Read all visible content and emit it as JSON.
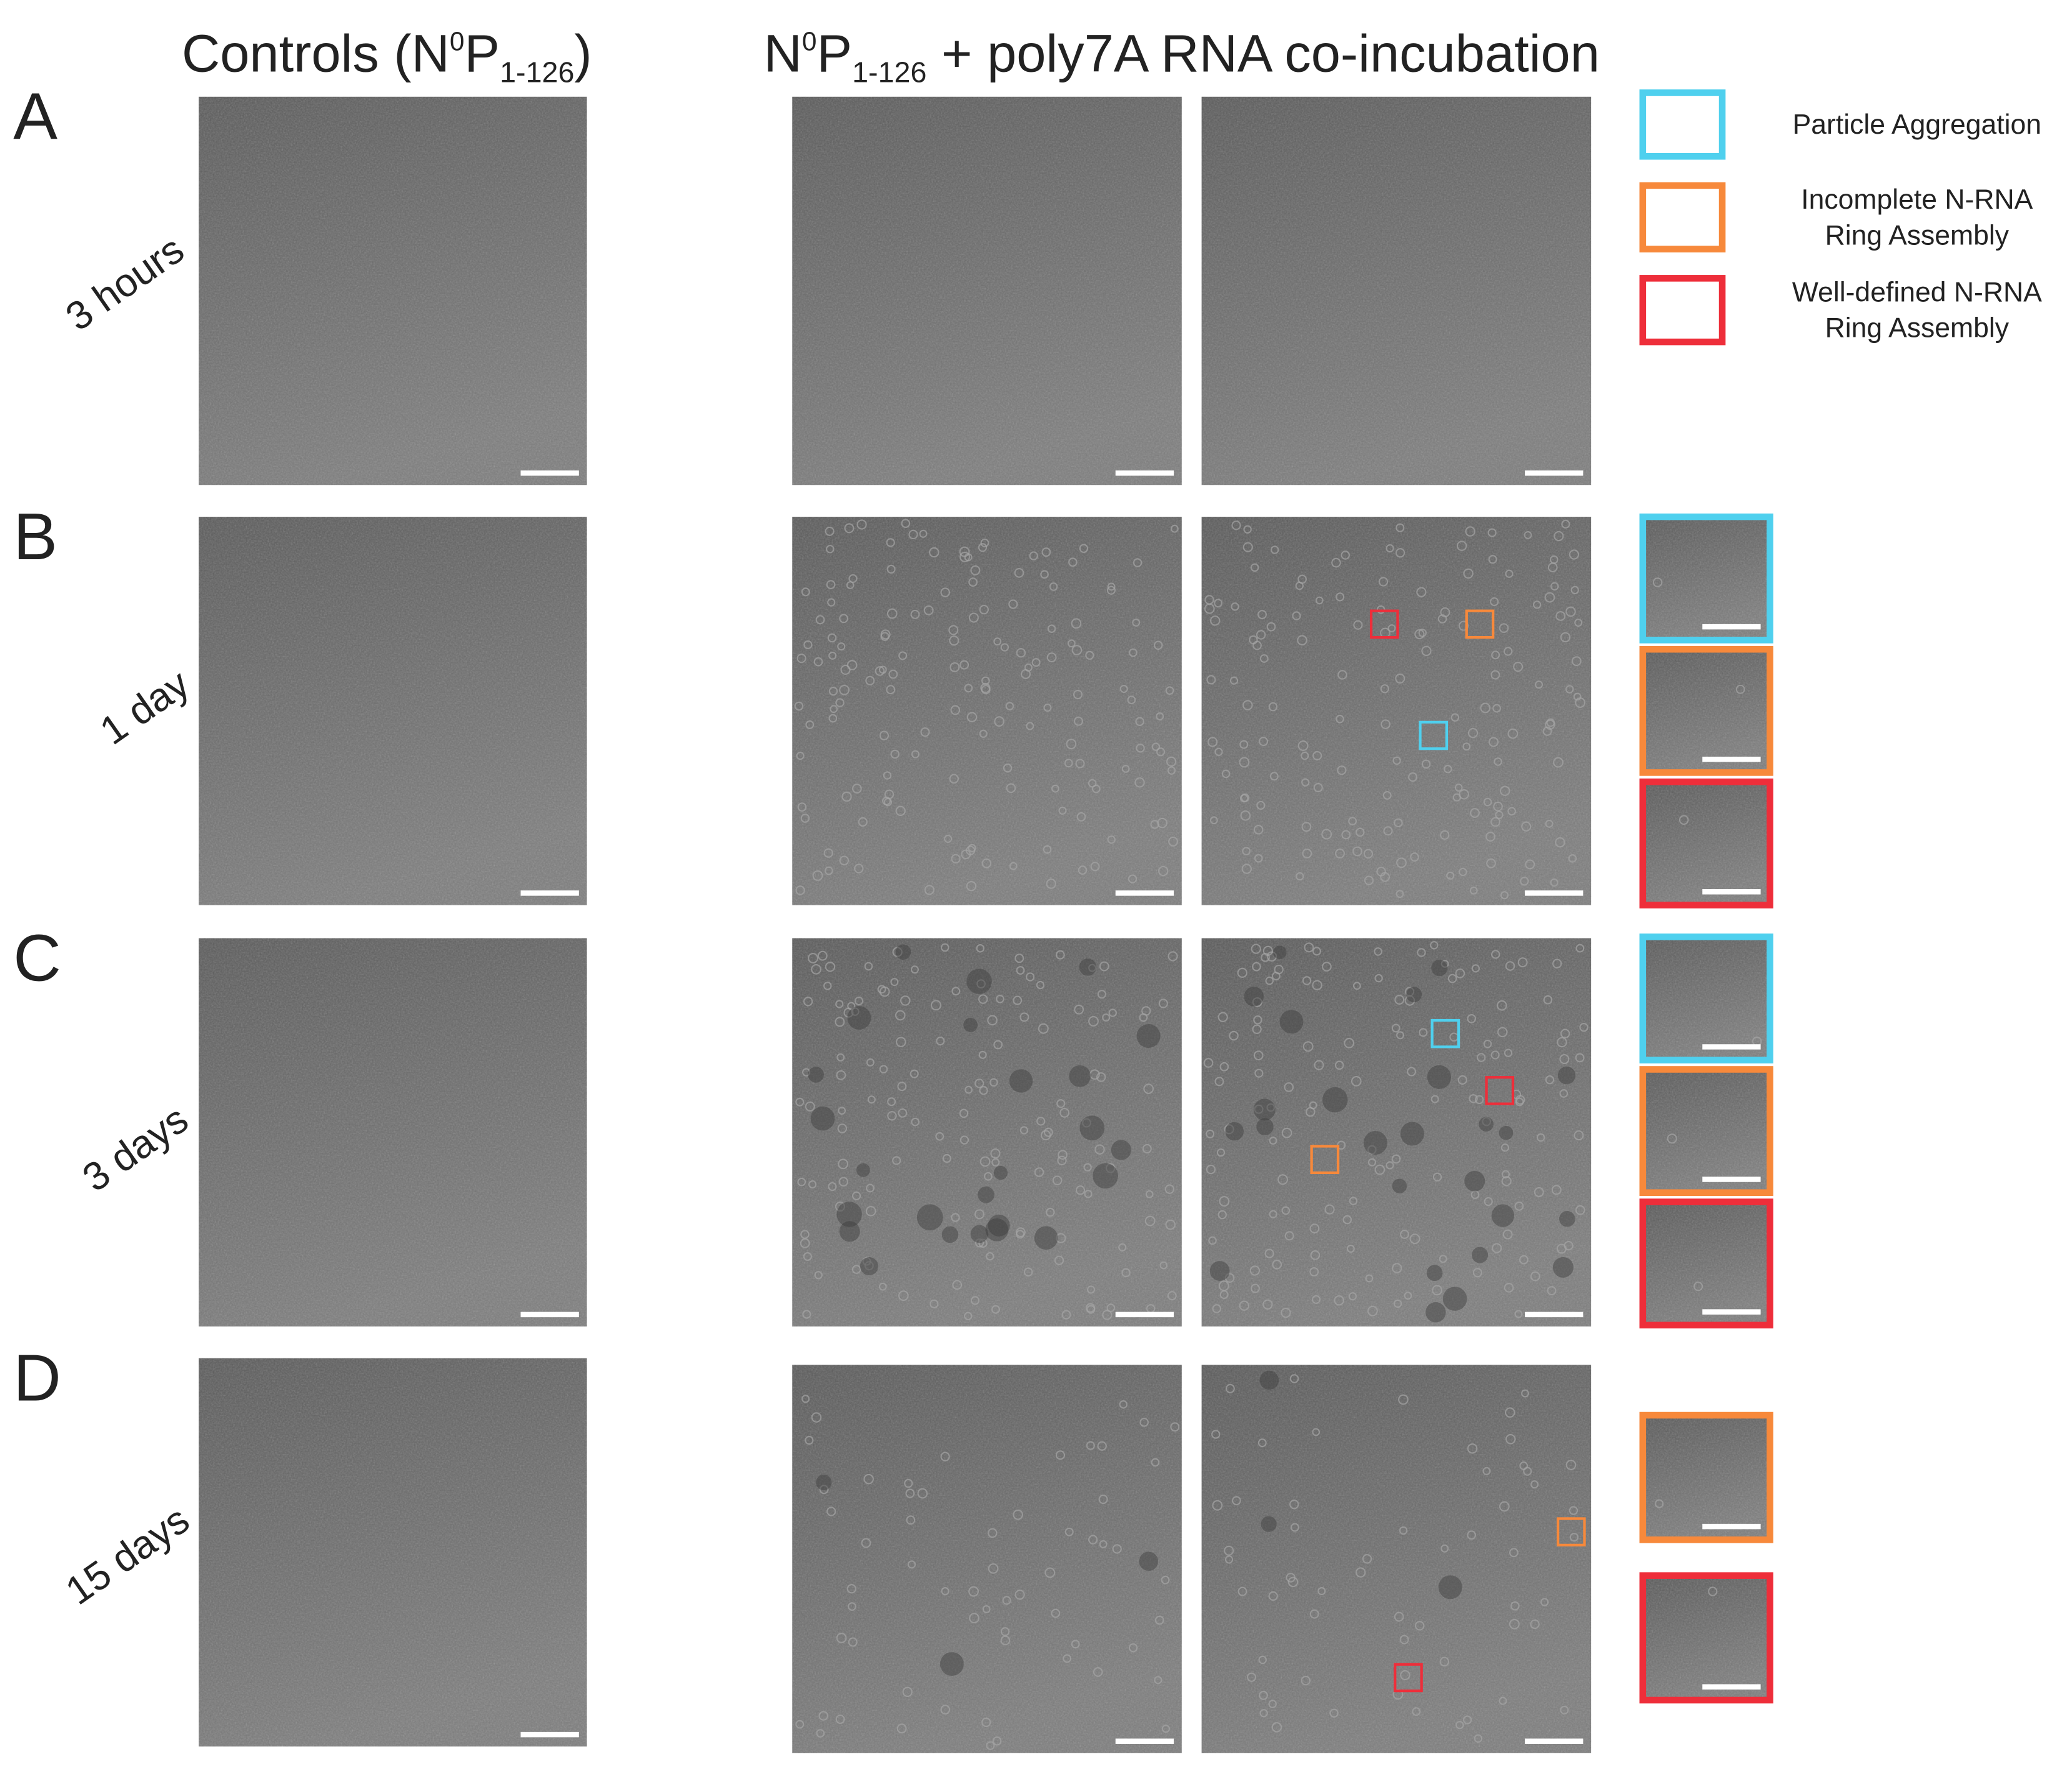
{
  "header": {
    "controls": {
      "parts": [
        "Controls (N",
        "0",
        "P",
        "1-126",
        ")"
      ]
    },
    "coincubation": {
      "parts": [
        "N",
        "0",
        "P",
        "1-126",
        " + poly7A RNA co-incubation"
      ]
    }
  },
  "legend": [
    {
      "lines": [
        "Particle Aggregation"
      ]
    },
    {
      "lines": [
        "Incomplete N-RNA",
        "Ring Assembly"
      ]
    },
    {
      "lines": [
        "Well-defined N-RNA",
        "Ring Assembly"
      ]
    }
  ],
  "rows": [
    {
      "letter": "A",
      "time": "3 hours"
    },
    {
      "letter": "B",
      "time": "1 day"
    },
    {
      "letter": "C",
      "time": "3 days"
    },
    {
      "letter": "D",
      "time": "15 days"
    }
  ]
}
